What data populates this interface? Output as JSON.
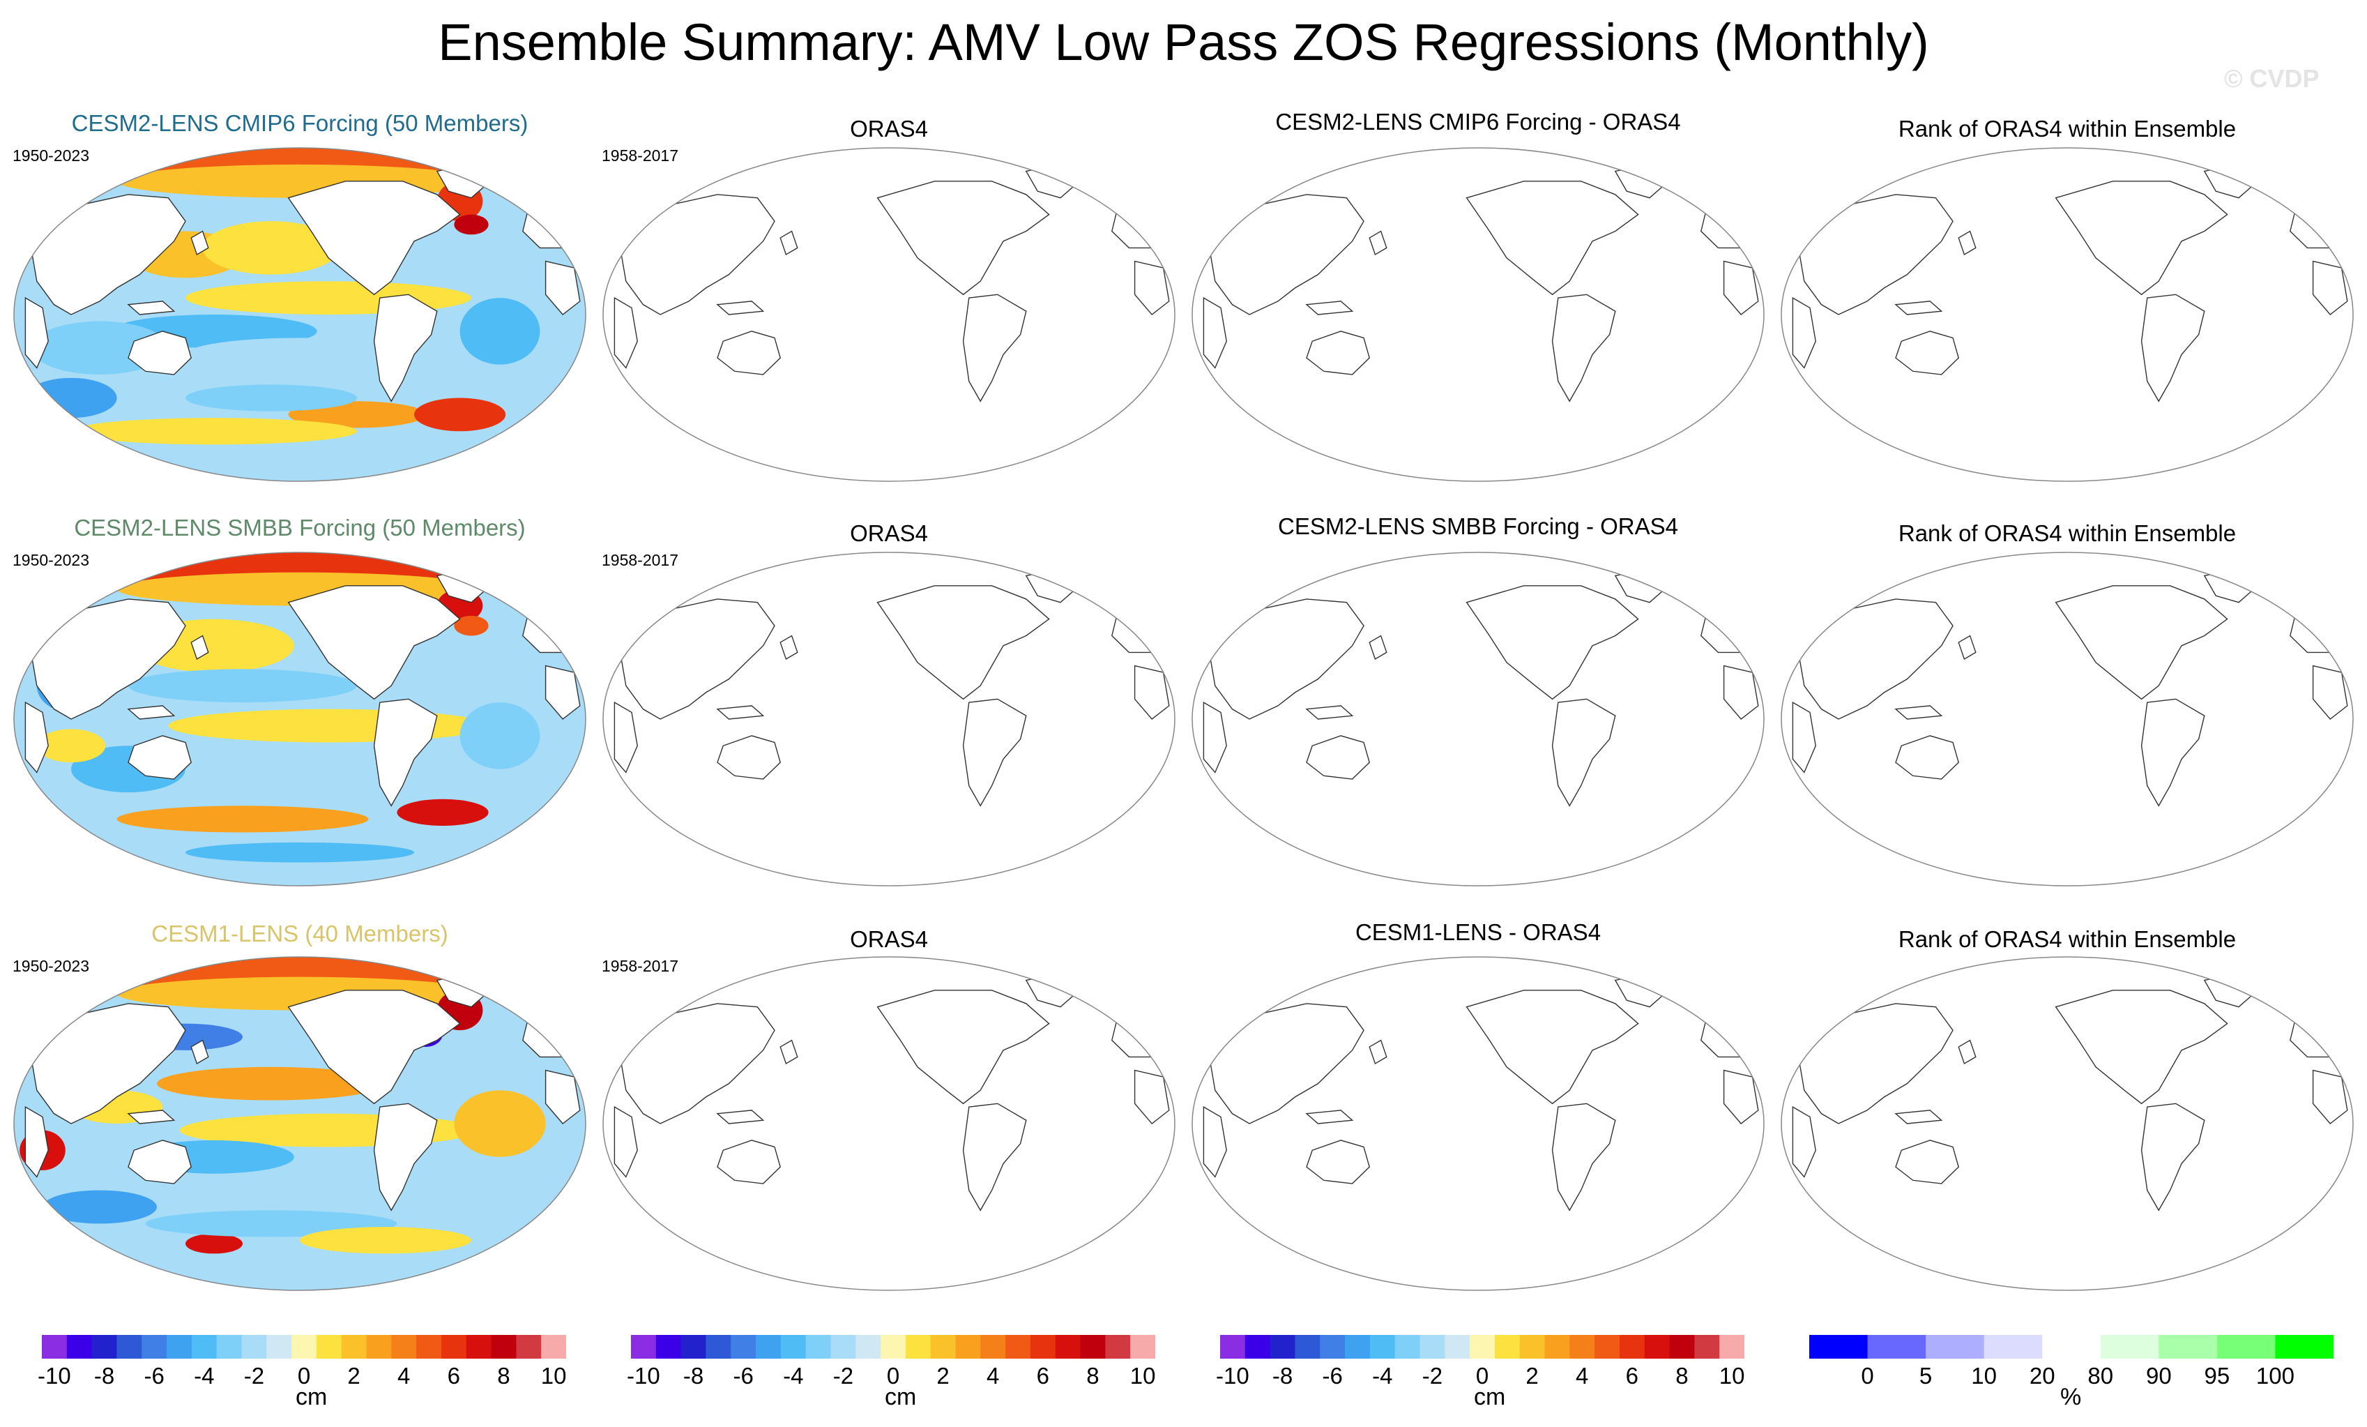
{
  "title": "Ensemble Summary: AMV Low Pass ZOS Regressions (Monthly)",
  "watermark": "© CVDP",
  "rows": [
    {
      "ensemble_title": "CESM2-LENS CMIP6 Forcing (50 Members)",
      "ensemble_title_color": "#1f6c8f",
      "ensemble_period": "1950-2023",
      "obs_title": "ORAS4",
      "obs_period": "1958-2017",
      "diff_title": "CESM2-LENS CMIP6 Forcing - ORAS4",
      "rank_title": "Rank of ORAS4 within Ensemble"
    },
    {
      "ensemble_title": "CESM2-LENS SMBB Forcing (50 Members)",
      "ensemble_title_color": "#5f8a6a",
      "ensemble_period": "1950-2023",
      "obs_title": "ORAS4",
      "obs_period": "1958-2017",
      "diff_title": "CESM2-LENS SMBB Forcing - ORAS4",
      "rank_title": "Rank of ORAS4 within Ensemble"
    },
    {
      "ensemble_title": "CESM1-LENS (40 Members)",
      "ensemble_title_color": "#d9c46a",
      "ensemble_period": "1950-2023",
      "obs_title": "ORAS4",
      "obs_period": "1958-2017",
      "diff_title": "CESM1-LENS - ORAS4",
      "rank_title": "Rank of ORAS4 within Ensemble"
    }
  ],
  "chart_data": [
    {
      "type": "colorbar",
      "unit": "cm",
      "levels": [
        -10,
        -9,
        -8,
        -7,
        -6,
        -5,
        -4,
        -3,
        -2,
        -1,
        0,
        1,
        2,
        3,
        4,
        5,
        6,
        7,
        8,
        9,
        10
      ],
      "tick_labels": [
        "-10",
        "-8",
        "-6",
        "-4",
        "-2",
        "0",
        "2",
        "4",
        "6",
        "8",
        "10"
      ],
      "colors": [
        "#8b2de2",
        "#3b00e8",
        "#2222cc",
        "#2d59d6",
        "#3f7fe6",
        "#3ea2f0",
        "#50bcf5",
        "#7fd0f8",
        "#a9dcf6",
        "#cfe8f3",
        "#fdf6b0",
        "#fde23f",
        "#fbc12a",
        "#f9a11f",
        "#f57f18",
        "#f05a14",
        "#e8330f",
        "#d8100d",
        "#c0000c",
        "#d03a40",
        "#f7aaaa"
      ]
    },
    {
      "type": "colorbar",
      "unit": "%",
      "levels": [
        0,
        5,
        10,
        20,
        80,
        90,
        95,
        100
      ],
      "tick_labels": [
        "0",
        "5",
        "10",
        "20",
        "80",
        "90",
        "95",
        "100"
      ],
      "colors": [
        "#0000ff",
        "#6868ff",
        "#aeaeff",
        "#dcdcff",
        "#ffffff",
        "#ddffdd",
        "#aaffaa",
        "#77ff77",
        "#00ff00"
      ]
    }
  ],
  "colorbars": [
    {
      "unit": "cm",
      "ticks": [
        "-10",
        "-8",
        "-6",
        "-4",
        "-2",
        "0",
        "2",
        "4",
        "6",
        "8",
        "10"
      ]
    },
    {
      "unit": "cm",
      "ticks": [
        "-10",
        "-8",
        "-6",
        "-4",
        "-2",
        "0",
        "2",
        "4",
        "6",
        "8",
        "10"
      ]
    },
    {
      "unit": "cm",
      "ticks": [
        "-10",
        "-8",
        "-6",
        "-4",
        "-2",
        "0",
        "2",
        "4",
        "6",
        "8",
        "10"
      ]
    },
    {
      "unit": "%",
      "ticks": [
        "0",
        "5",
        "10",
        "20",
        "80",
        "90",
        "95",
        "100"
      ]
    }
  ]
}
